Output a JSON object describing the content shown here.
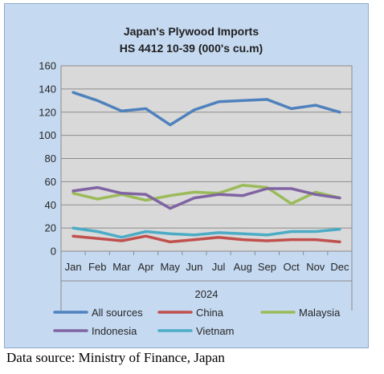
{
  "source_note": "Data source: Ministry of Finance, Japan",
  "chart_data": {
    "type": "line",
    "title": [
      "Japan's Plywood Imports",
      "HS 4412 10-39  (000's cu.m)"
    ],
    "categories": [
      "Jan",
      "Feb",
      "Mar",
      "Apr",
      "May",
      "Jun",
      "Jul",
      "Aug",
      "Sep",
      "Oct",
      "Nov",
      "Dec"
    ],
    "xgroup": "2024",
    "ylim": [
      0,
      160
    ],
    "yticks": [
      0,
      20,
      40,
      60,
      80,
      100,
      120,
      140,
      160
    ],
    "grid": true,
    "legend_position": "bottom",
    "series": [
      {
        "name": "All sources",
        "color": "#4f81bd",
        "values": [
          137,
          130,
          121,
          123,
          109,
          122,
          129,
          130,
          131,
          123,
          126,
          120
        ]
      },
      {
        "name": "China",
        "color": "#c0504d",
        "values": [
          13,
          11,
          9,
          13,
          8,
          10,
          12,
          10,
          9,
          10,
          10,
          8
        ]
      },
      {
        "name": "Malaysia",
        "color": "#9bbb59",
        "values": [
          50,
          45,
          49,
          44,
          48,
          51,
          50,
          57,
          55,
          41,
          51,
          46
        ]
      },
      {
        "name": "Indonesia",
        "color": "#8064a2",
        "values": [
          52,
          55,
          50,
          49,
          37,
          46,
          49,
          48,
          54,
          54,
          49,
          46
        ]
      },
      {
        "name": "Vietnam",
        "color": "#4bacc6",
        "values": [
          20,
          17,
          12,
          17,
          15,
          14,
          16,
          15,
          14,
          17,
          17,
          19
        ]
      }
    ]
  }
}
